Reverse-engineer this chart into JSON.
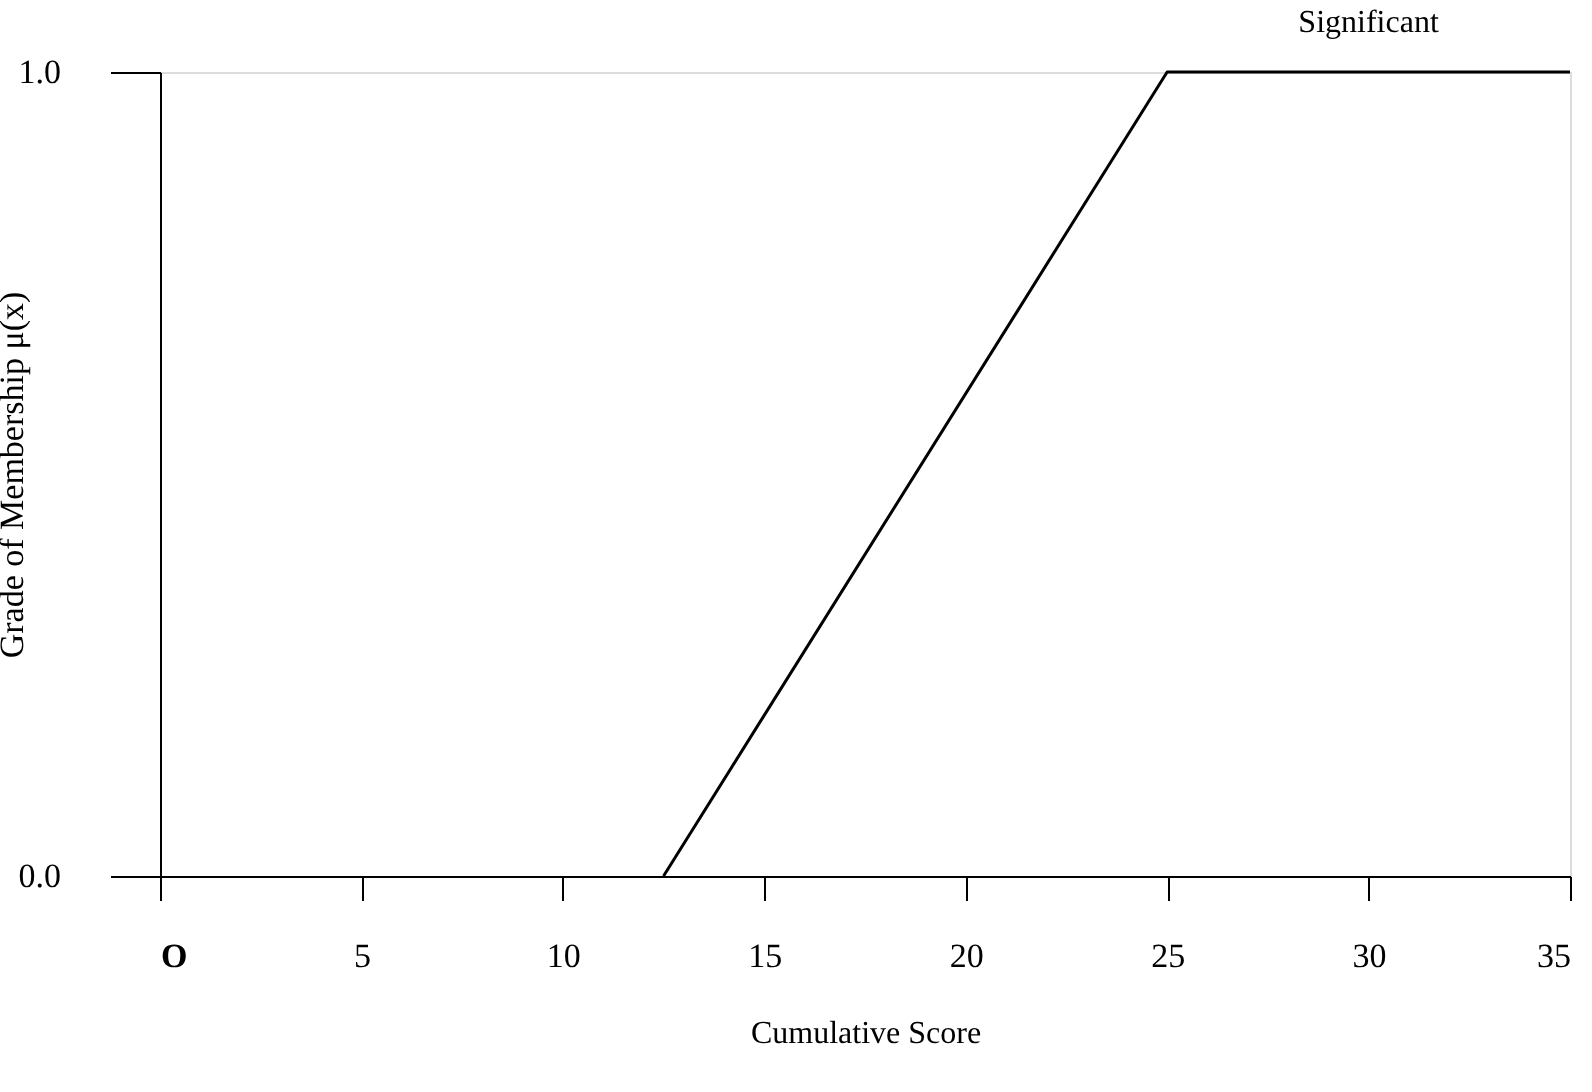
{
  "chart_data": {
    "type": "line",
    "xlabel": "Cumulative Score",
    "ylabel": "Grade of Membership μ(x)",
    "series": [
      {
        "x": [
          12.5,
          25,
          35
        ],
        "values": [
          0,
          1,
          1
        ],
        "color": "#000000"
      }
    ],
    "xlim": [
      0,
      35
    ],
    "xticks": [
      {
        "value": 0,
        "label": "O"
      },
      5,
      10,
      15,
      20,
      25,
      30,
      35
    ],
    "ylim": [
      0,
      1
    ],
    "yticks": [
      {
        "value": 0,
        "label": "0.0"
      },
      {
        "value": 1,
        "label": "1.0"
      }
    ],
    "annotations": [
      {
        "text": "Significant",
        "x": 30,
        "y": 1
      }
    ],
    "grid": false,
    "marker": "none",
    "line_style": "solid"
  }
}
